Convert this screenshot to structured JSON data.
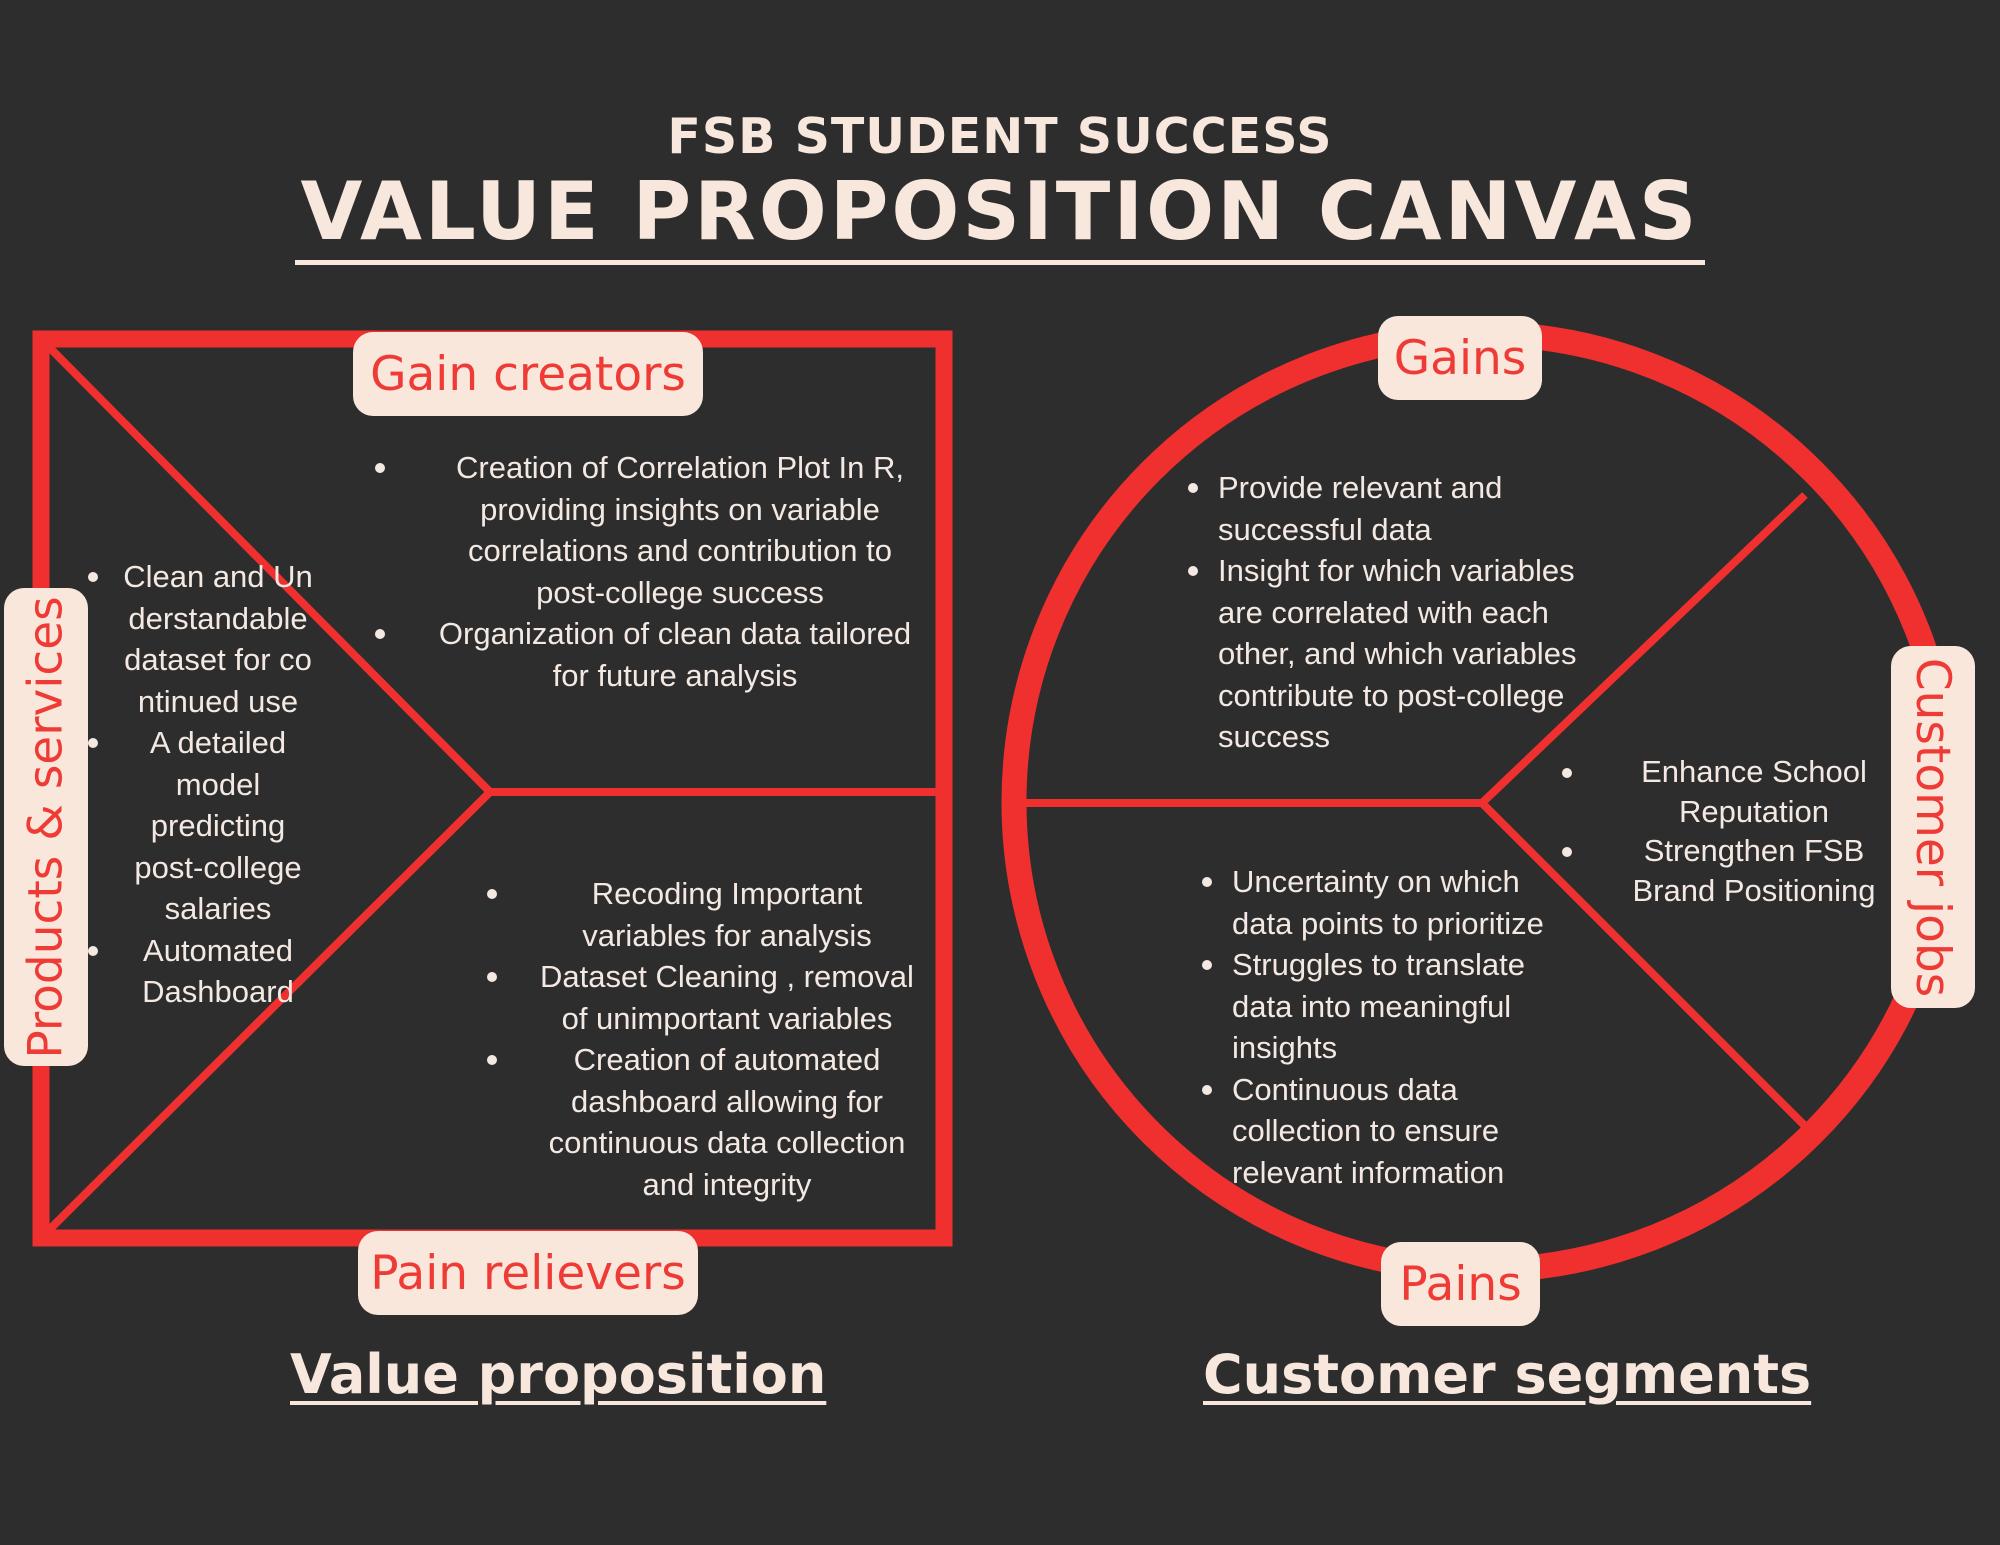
{
  "header": {
    "subtitle": "FSB STUDENT SUCCESS",
    "title": "VALUE PROPOSITION CANVAS"
  },
  "colors": {
    "background": "#2d2d2d",
    "accent_red": "#f0302f",
    "label_bg": "#f9e7dc",
    "text": "#f4e9e2"
  },
  "value_proposition": {
    "footer": "Value proposition",
    "gain_creators": {
      "label": "Gain creators",
      "items": [
        "Creation of Correlation Plot In R, providing insights on variable correlations and contribution to post-college success",
        "Organization of clean data tailored for future analysis"
      ]
    },
    "pain_relievers": {
      "label": "Pain relievers",
      "items": [
        "Recoding Important variables for analysis",
        "Dataset Cleaning , removal of unimportant  variables",
        "Creation of automated dashboard allowing for continuous data collection and integrity"
      ]
    },
    "products_services": {
      "label": "Products & services",
      "items": [
        "Clean and Understandable dataset for continued use",
        "A detailed model predicting post-college salaries",
        "Automated Dashboard"
      ]
    }
  },
  "customer_segments": {
    "footer": "Customer segments",
    "gains": {
      "label": "Gains",
      "items": [
        "Provide relevant and successful data",
        "Insight for which variables are correlated with each other, and which variables contribute to post-college success"
      ]
    },
    "pains": {
      "label": "Pains",
      "items": [
        "Uncertainty on which data points to prioritize",
        "Struggles to translate data into meaningful insights",
        "Continuous data collection to ensure relevant information"
      ]
    },
    "customer_jobs": {
      "label": "Customer jobs",
      "items": [
        "Enhance School Reputation",
        "Strengthen FSB Brand Positioning"
      ]
    }
  }
}
